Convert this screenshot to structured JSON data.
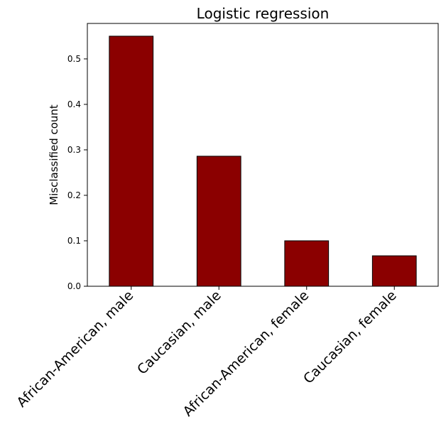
{
  "chart_data": {
    "type": "bar",
    "title": "Logistic regression",
    "xlabel": "",
    "ylabel": "Misclassified count",
    "categories": [
      "African-American, male",
      "Caucasian, male",
      "African-American, female",
      "Caucasian, female"
    ],
    "values": [
      0.55,
      0.286,
      0.1,
      0.067
    ],
    "ylim": [
      0,
      0.578
    ],
    "yticks": [
      0.0,
      0.1,
      0.2,
      0.3,
      0.4,
      0.5
    ],
    "ytick_labels": [
      "0.0",
      "0.1",
      "0.2",
      "0.3",
      "0.4",
      "0.5"
    ],
    "grid": false,
    "bar_color": "#8b0000",
    "edge_color": "#000000"
  }
}
